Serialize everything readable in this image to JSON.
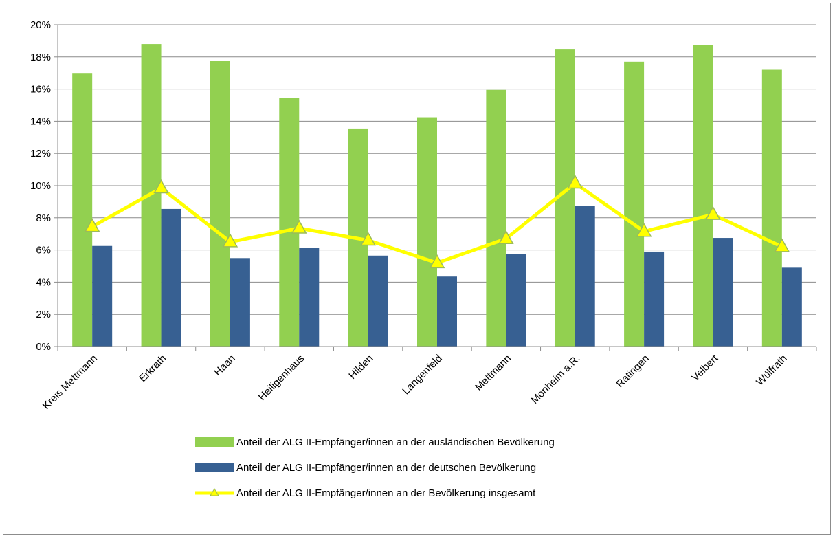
{
  "chart_data": {
    "type": "bar",
    "categories": [
      "Kreis Mettmann",
      "Erkrath",
      "Haan",
      "Heiligenhaus",
      "Hilden",
      "Langenfeld",
      "Mettmann",
      "Monheim a.R.",
      "Ratingen",
      "Velbert",
      "Wülfrath"
    ],
    "series": [
      {
        "name": "Anteil der ALG II-Empfänger/innen an der ausländischen Bevölkerung",
        "type": "bar",
        "color": "#92d050",
        "values": [
          17.0,
          18.8,
          17.75,
          15.45,
          13.55,
          14.25,
          15.95,
          18.5,
          17.7,
          18.75,
          17.2
        ]
      },
      {
        "name": "Anteil der ALG II-Empfänger/innen an der deutschen Bevölkerung",
        "type": "bar",
        "color": "#376092",
        "values": [
          6.25,
          8.55,
          5.5,
          6.15,
          5.65,
          4.35,
          5.75,
          8.75,
          5.9,
          6.75,
          4.9
        ]
      },
      {
        "name": "Anteil der ALG II-Empfänger/innen an der Bevölkerung insgesamt",
        "type": "line",
        "color": "#ffff00",
        "marker": "triangle",
        "values": [
          7.45,
          9.85,
          6.5,
          7.35,
          6.6,
          5.2,
          6.7,
          10.15,
          7.15,
          8.2,
          6.2
        ]
      }
    ],
    "y_ticks": [
      "0%",
      "2%",
      "4%",
      "6%",
      "8%",
      "10%",
      "12%",
      "14%",
      "16%",
      "18%",
      "20%"
    ],
    "ylim": [
      0,
      20
    ],
    "y_unit": "%",
    "grid": true,
    "legend_position": "bottom"
  }
}
